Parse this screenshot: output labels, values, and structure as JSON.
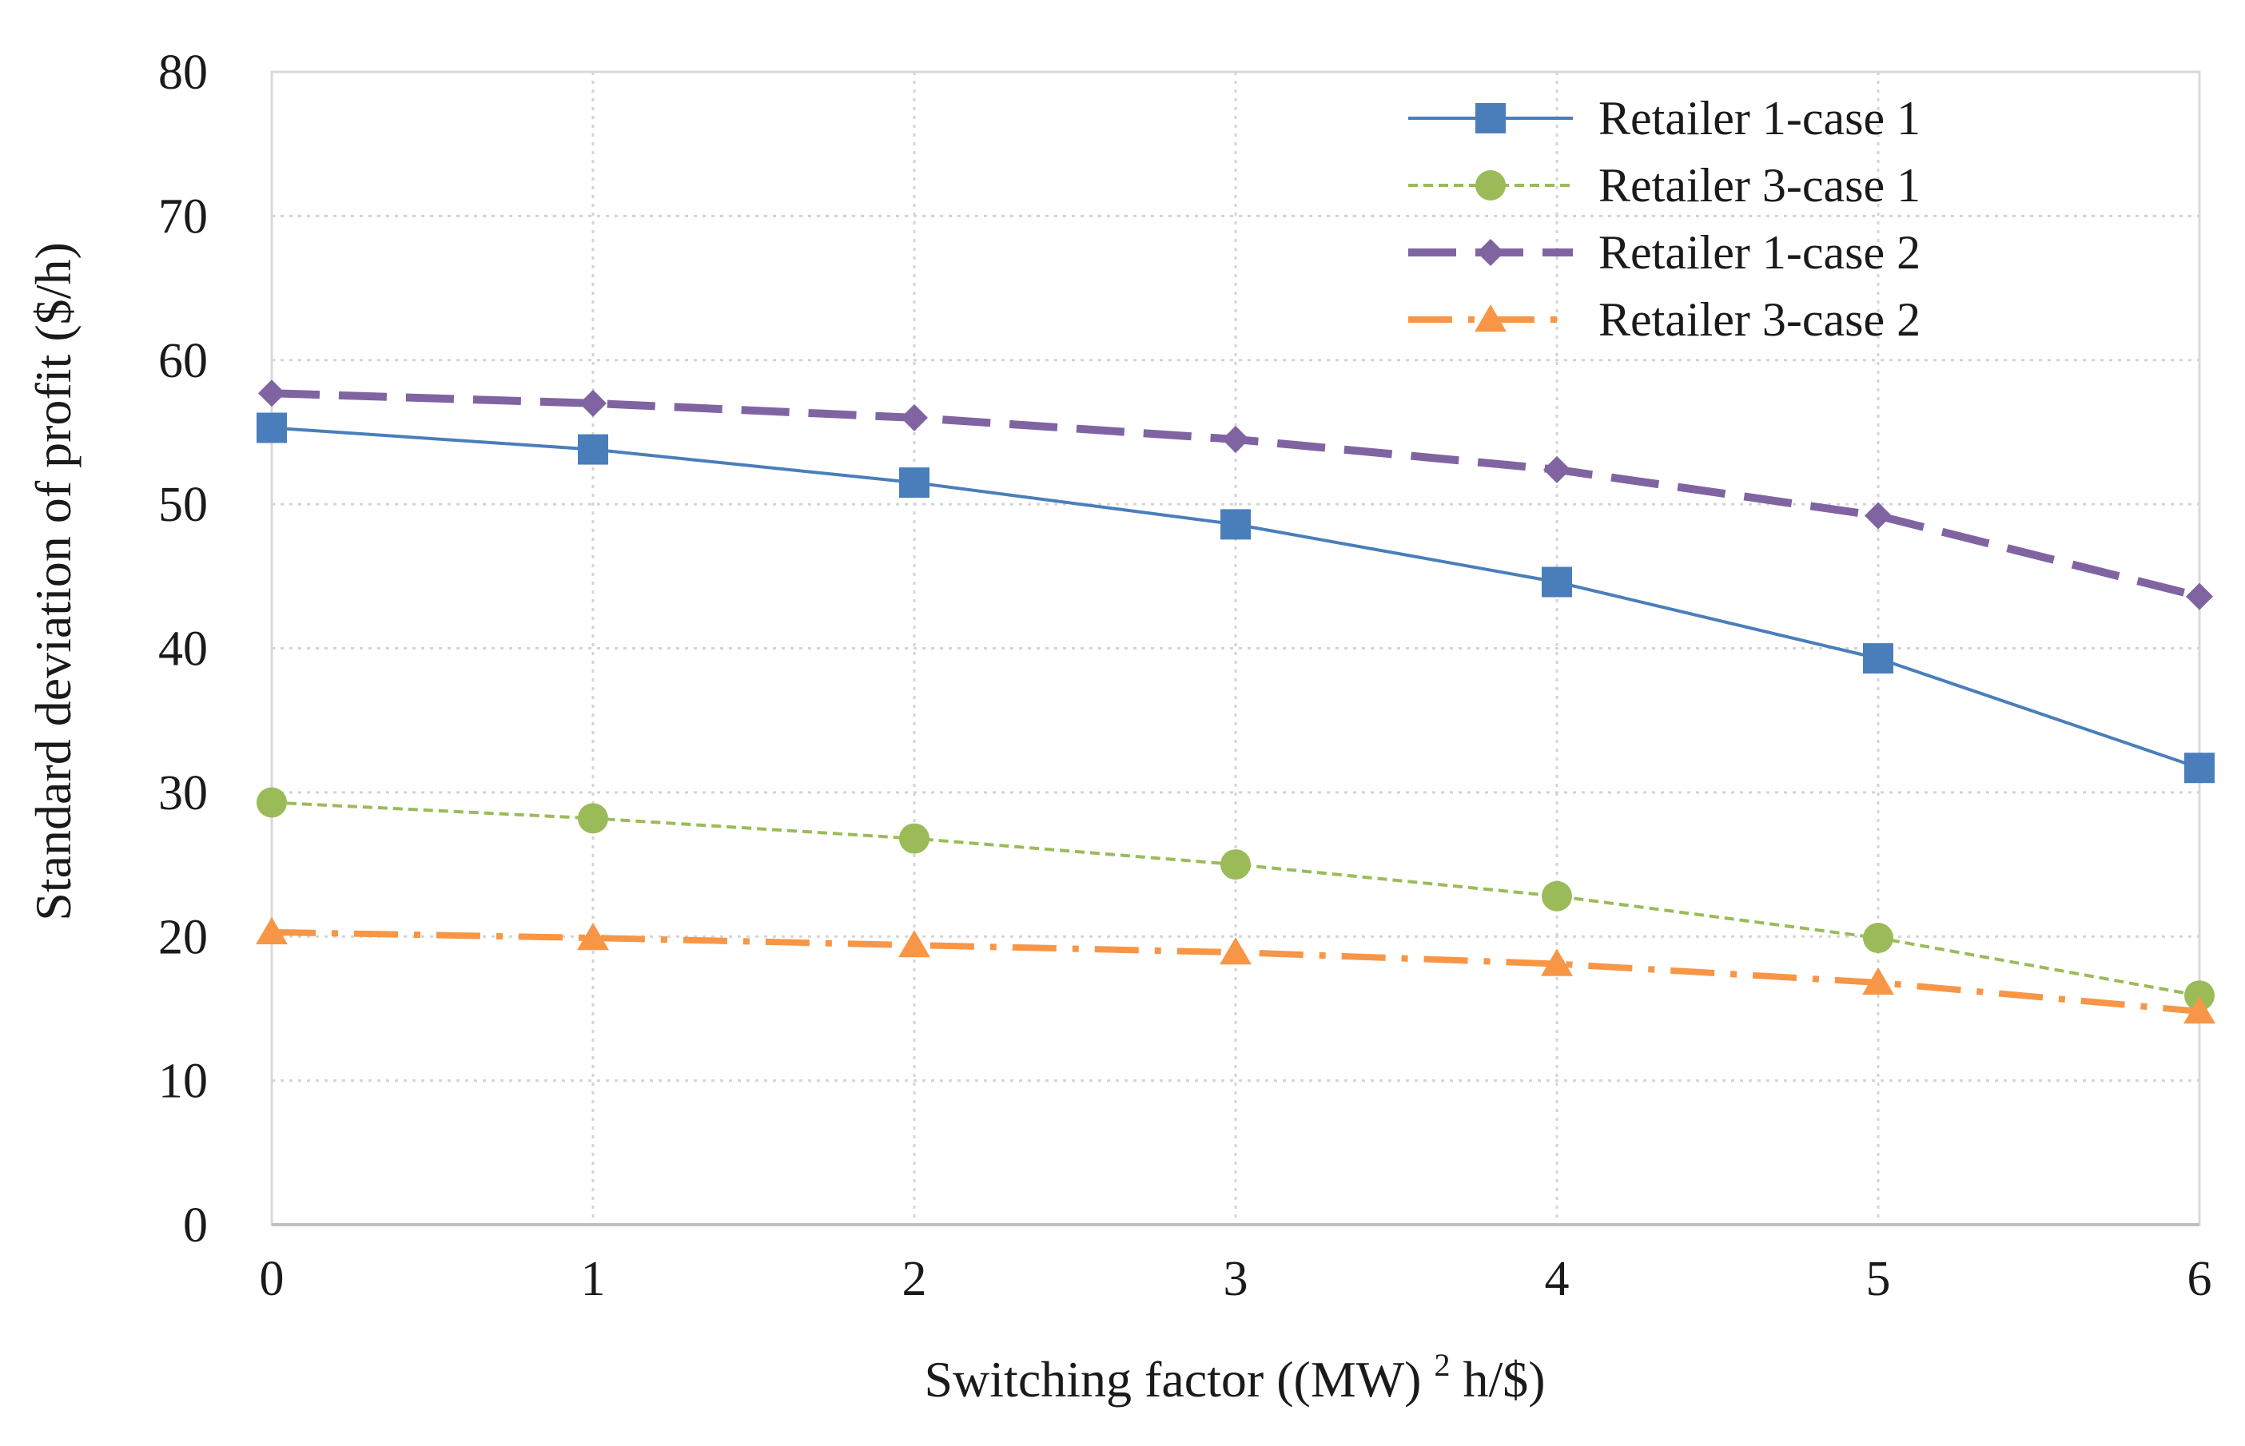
{
  "chart_data": {
    "type": "line",
    "title": "",
    "xlabel_main": "Switching factor ((MW)",
    "xlabel_sup": "2",
    "xlabel_tail": "h/$)",
    "ylabel": "Standard deviation of profit ($/h)",
    "x": [
      0,
      1,
      2,
      3,
      4,
      5,
      6
    ],
    "x_tick_labels": [
      "0",
      "1",
      "2",
      "3",
      "4",
      "5",
      "6"
    ],
    "y_tick_labels": [
      "0",
      "10",
      "20",
      "30",
      "40",
      "50",
      "60",
      "70",
      "80"
    ],
    "xlim": [
      0,
      6
    ],
    "ylim": [
      0,
      80
    ],
    "grid": true,
    "legend_position": "top-right",
    "series": [
      {
        "name": "Retailer 1-case 1",
        "color": "#4a7ebb",
        "line_style": "solid",
        "marker": "square",
        "values": [
          55.3,
          53.8,
          51.5,
          48.6,
          44.6,
          39.3,
          31.7
        ]
      },
      {
        "name": "Retailer 3-case 1",
        "color": "#9bbb59",
        "line_style": "dashed",
        "marker": "circle",
        "values": [
          29.3,
          28.2,
          26.8,
          25.0,
          22.8,
          19.9,
          15.9
        ]
      },
      {
        "name": "Retailer 1-case 2",
        "color": "#8064a2",
        "line_style": "long-dash",
        "marker": "diamond",
        "values": [
          57.7,
          57.0,
          56.0,
          54.5,
          52.4,
          49.2,
          43.6
        ]
      },
      {
        "name": "Retailer 3-case 2",
        "color": "#f79646",
        "line_style": "dash-dot",
        "marker": "triangle",
        "values": [
          20.3,
          19.9,
          19.4,
          18.9,
          18.1,
          16.8,
          14.8
        ]
      }
    ]
  }
}
